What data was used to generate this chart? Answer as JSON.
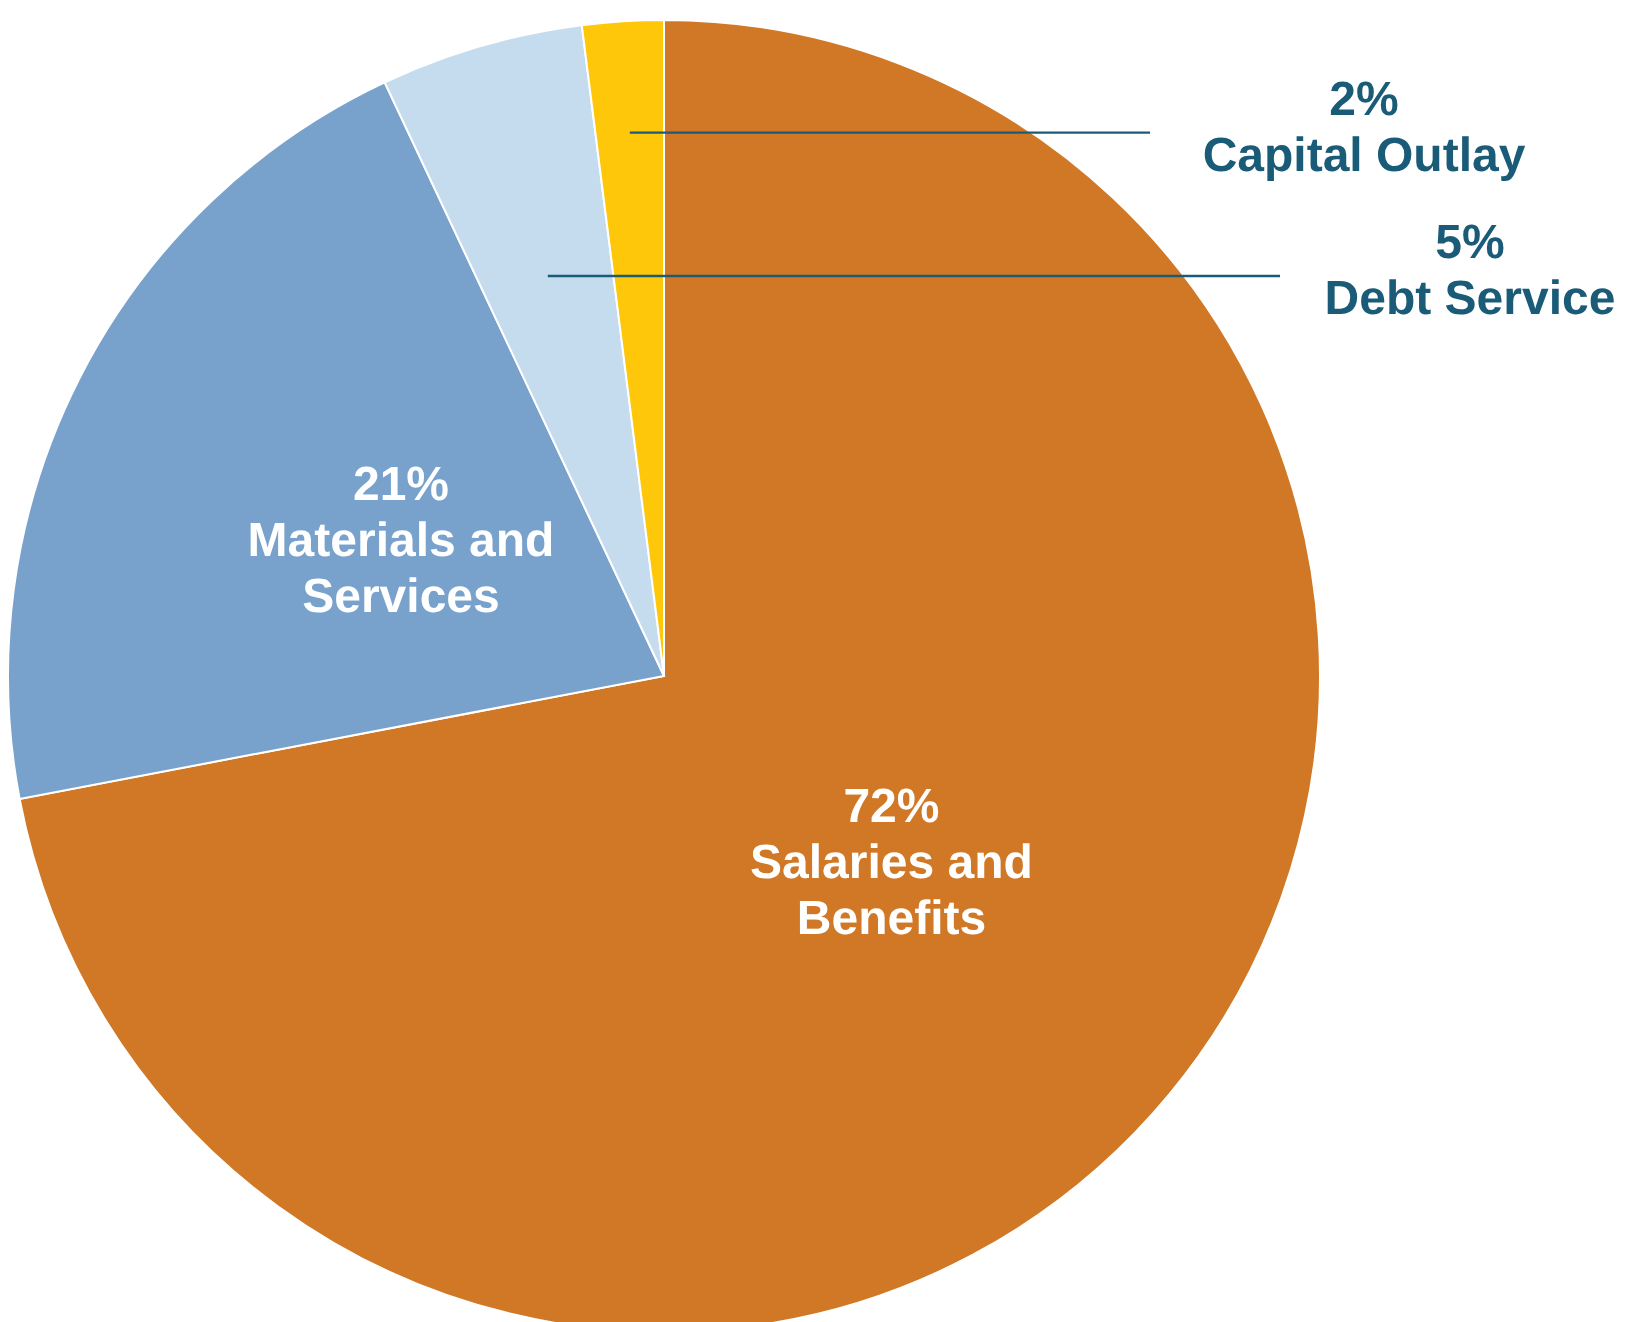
{
  "chart_data": {
    "type": "pie",
    "categories": [
      "Salaries and Benefits",
      "Materials and Services",
      "Debt Service",
      "Capital Outlay"
    ],
    "values": [
      72,
      21,
      5,
      2
    ],
    "colors": [
      "#d07826",
      "#78a2cc",
      "#c5dbee",
      "#fec70a"
    ],
    "value_labels": [
      "72%",
      "21%",
      "5%",
      "2%"
    ]
  }
}
